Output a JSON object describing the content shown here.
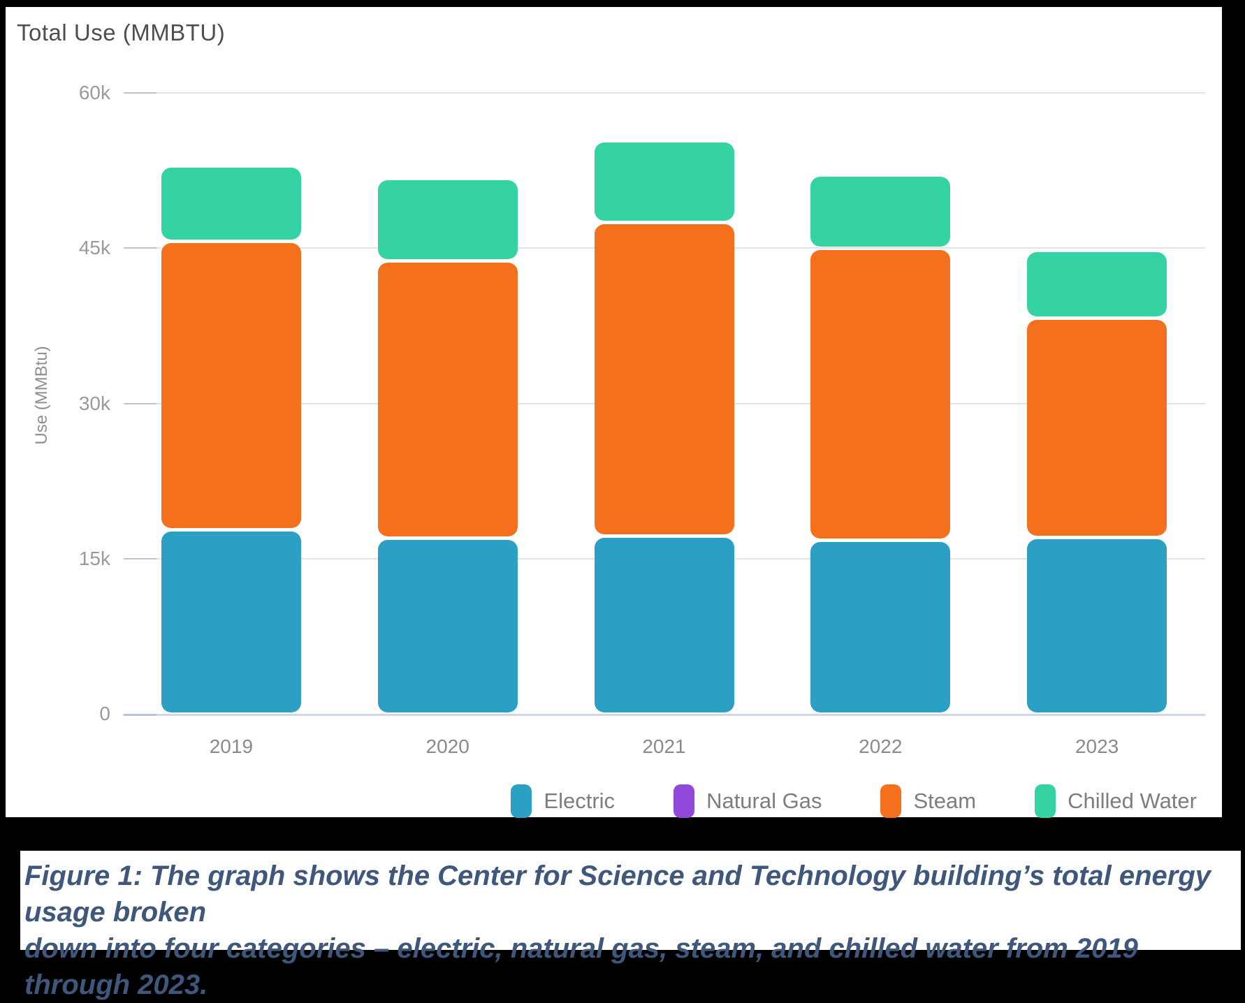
{
  "chart": {
    "title": "Total Use (MMBTU)",
    "y_axis_title": "Use (MMBtu)"
  },
  "caption": {
    "line1": "Figure 1: The graph shows the Center for Science and Technology building’s total energy usage broken",
    "line2": "down into four categories – electric, natural gas, steam, and chilled water from 2019 through 2023."
  },
  "chart_data": {
    "type": "bar",
    "stacked": true,
    "title": "Total Use (MMBTU)",
    "xlabel": "",
    "ylabel": "Use (MMBtu)",
    "categories": [
      "2019",
      "2020",
      "2021",
      "2022",
      "2023"
    ],
    "series": [
      {
        "name": "Electric",
        "color": "#2CA0C4",
        "values": [
          17800,
          17000,
          17200,
          16800,
          17100
        ]
      },
      {
        "name": "Natural Gas",
        "color": "#9049DA",
        "values": [
          0,
          0,
          0,
          0,
          0
        ]
      },
      {
        "name": "Steam",
        "color": "#F5701D",
        "values": [
          27900,
          26800,
          30300,
          28200,
          21200
        ]
      },
      {
        "name": "Chilled Water",
        "color": "#35D2A4",
        "values": [
          7300,
          8000,
          7900,
          7100,
          6500
        ]
      }
    ],
    "totals": [
      53000,
      51800,
      55400,
      52100,
      44800
    ],
    "ylim": [
      0,
      60000
    ],
    "yticks": [
      {
        "label": "0",
        "value": 0
      },
      {
        "label": "15k",
        "value": 15000
      },
      {
        "label": "30k",
        "value": 30000
      },
      {
        "label": "45k",
        "value": 45000
      },
      {
        "label": "60k",
        "value": 60000
      }
    ],
    "grid": "horizontal",
    "legend_position": "bottom-right"
  }
}
